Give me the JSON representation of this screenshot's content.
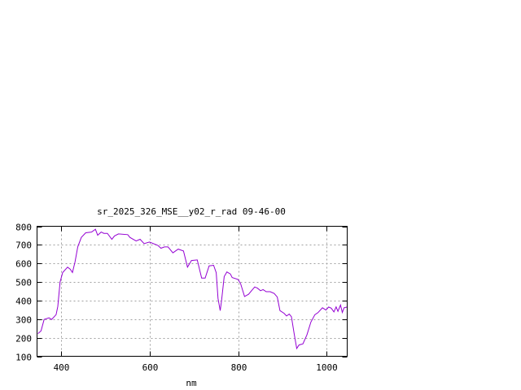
{
  "chart_data": {
    "type": "line",
    "title": "sr_2025_326_MSE__y02_r_rad 09-46-00",
    "xlabel": "nm",
    "ylabel": "",
    "xlim": [
      345,
      1046
    ],
    "ylim": [
      100,
      800
    ],
    "xticks": [
      400,
      600,
      800,
      1000
    ],
    "yticks": [
      100,
      200,
      300,
      400,
      500,
      600,
      700,
      800
    ],
    "grid": true,
    "line_color": "#9400d3",
    "x": [
      347,
      354,
      361,
      372,
      378,
      388,
      392,
      397,
      403,
      414,
      420,
      425,
      431,
      437,
      445,
      455,
      468,
      477,
      482,
      490,
      496,
      504,
      514,
      520,
      529,
      550,
      555,
      569,
      578,
      587,
      599,
      618,
      625,
      633,
      641,
      652,
      664,
      676,
      685,
      694,
      707,
      717,
      725,
      734,
      744,
      750,
      754,
      759,
      762,
      768,
      774,
      782,
      786,
      799,
      805,
      814,
      823,
      831,
      837,
      843,
      850,
      856,
      863,
      872,
      881,
      888,
      894,
      903,
      909,
      915,
      920,
      926,
      932,
      937,
      946,
      955,
      964,
      973,
      980,
      990,
      998,
      1004,
      1010,
      1016,
      1021,
      1025,
      1031,
      1035,
      1039,
      1046
    ],
    "y": [
      222,
      237,
      298,
      307,
      298,
      324,
      368,
      500,
      551,
      580,
      569,
      551,
      609,
      689,
      740,
      765,
      769,
      784,
      752,
      769,
      762,
      762,
      730,
      748,
      759,
      755,
      740,
      721,
      730,
      707,
      715,
      697,
      682,
      689,
      689,
      657,
      677,
      667,
      580,
      616,
      619,
      521,
      521,
      587,
      590,
      550,
      412,
      346,
      397,
      529,
      554,
      543,
      524,
      514,
      492,
      422,
      434,
      456,
      473,
      467,
      453,
      459,
      448,
      448,
      438,
      419,
      346,
      332,
      317,
      327,
      313,
      223,
      142,
      161,
      167,
      215,
      284,
      324,
      335,
      361,
      349,
      365,
      359,
      339,
      366,
      342,
      376,
      336,
      361,
      365
    ]
  }
}
